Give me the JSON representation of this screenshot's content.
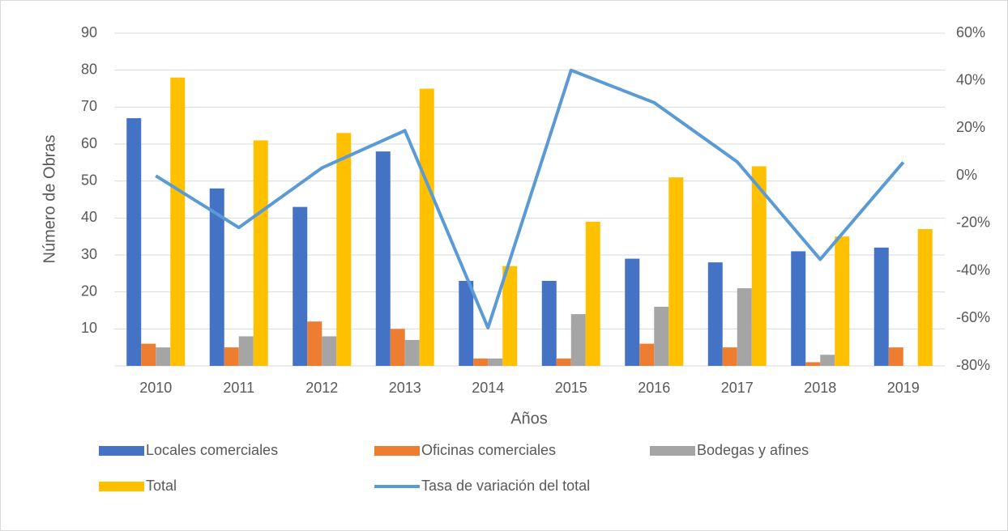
{
  "chart_data": {
    "type": "bar",
    "ylabel": "Número de Obras",
    "xlabel": "Años",
    "categories": [
      "2010",
      "2011",
      "2012",
      "2013",
      "2014",
      "2015",
      "2016",
      "2017",
      "2018",
      "2019"
    ],
    "series": [
      {
        "name": "Locales comerciales",
        "color": "#4472c4",
        "values": [
          67,
          48,
          43,
          58,
          23,
          23,
          29,
          28,
          31,
          32
        ]
      },
      {
        "name": "Oficinas comerciales",
        "color": "#ed7d31",
        "values": [
          6,
          5,
          12,
          10,
          2,
          2,
          6,
          5,
          1,
          5
        ]
      },
      {
        "name": "Bodegas y afines",
        "color": "#a5a5a5",
        "values": [
          5,
          8,
          8,
          7,
          2,
          14,
          16,
          21,
          3,
          0
        ]
      },
      {
        "name": "Total",
        "color": "#ffc000",
        "values": [
          78,
          61,
          63,
          75,
          27,
          39,
          51,
          54,
          35,
          37
        ]
      },
      {
        "name": "Tasa de variación del total",
        "color": "#5b9bd5",
        "type": "line",
        "axis": "y2",
        "values": [
          0,
          -21.8,
          3.3,
          19.0,
          -64.0,
          44.4,
          30.8,
          5.9,
          -35.2,
          5.7
        ]
      }
    ],
    "ylim": [
      0,
      90
    ],
    "yticks": [
      10,
      20,
      30,
      40,
      50,
      60,
      70,
      80,
      90
    ],
    "y2lim": [
      -80,
      60
    ],
    "y2ticks": [
      {
        "value": -80,
        "label": "-80%"
      },
      {
        "value": -60,
        "label": "-60%"
      },
      {
        "value": -40,
        "label": "-40%"
      },
      {
        "value": -20,
        "label": "-20%"
      },
      {
        "value": 0,
        "label": "0%"
      },
      {
        "value": 20,
        "label": "20%"
      },
      {
        "value": 40,
        "label": "40%"
      },
      {
        "value": 60,
        "label": "60%"
      }
    ],
    "grid": true,
    "legend": "bottom"
  }
}
